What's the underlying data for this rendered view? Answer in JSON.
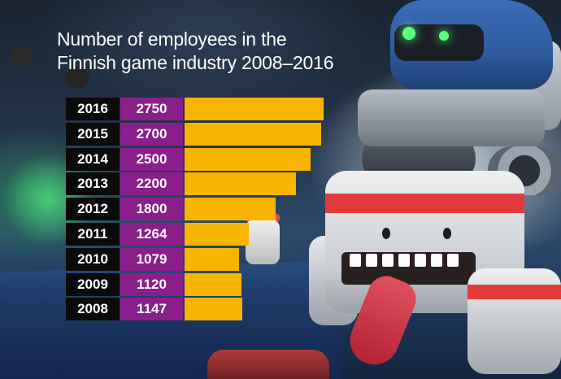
{
  "title": {
    "line1": "Number of employees in the",
    "line2": "Finnish game industry 2008–2016"
  },
  "colors": {
    "year_cell": "#0a0a0a",
    "value_cell": "#8a1f8c",
    "bar": "#f7b400",
    "title": "#ffffff"
  },
  "chart_data": {
    "type": "bar",
    "title": "Number of employees in the Finnish game industry 2008–2016",
    "orientation": "horizontal",
    "categories": [
      "2016",
      "2015",
      "2014",
      "2013",
      "2012",
      "2011",
      "2010",
      "2009",
      "2008"
    ],
    "values": [
      2750,
      2700,
      2500,
      2200,
      1800,
      1264,
      1079,
      1120,
      1147
    ],
    "value_labels": [
      "2750",
      "2700",
      "2500",
      "2200",
      "1800",
      "1264",
      "1079",
      "1120",
      "1147"
    ],
    "xlim": [
      0,
      2750
    ],
    "grid": false,
    "legend": "none"
  }
}
